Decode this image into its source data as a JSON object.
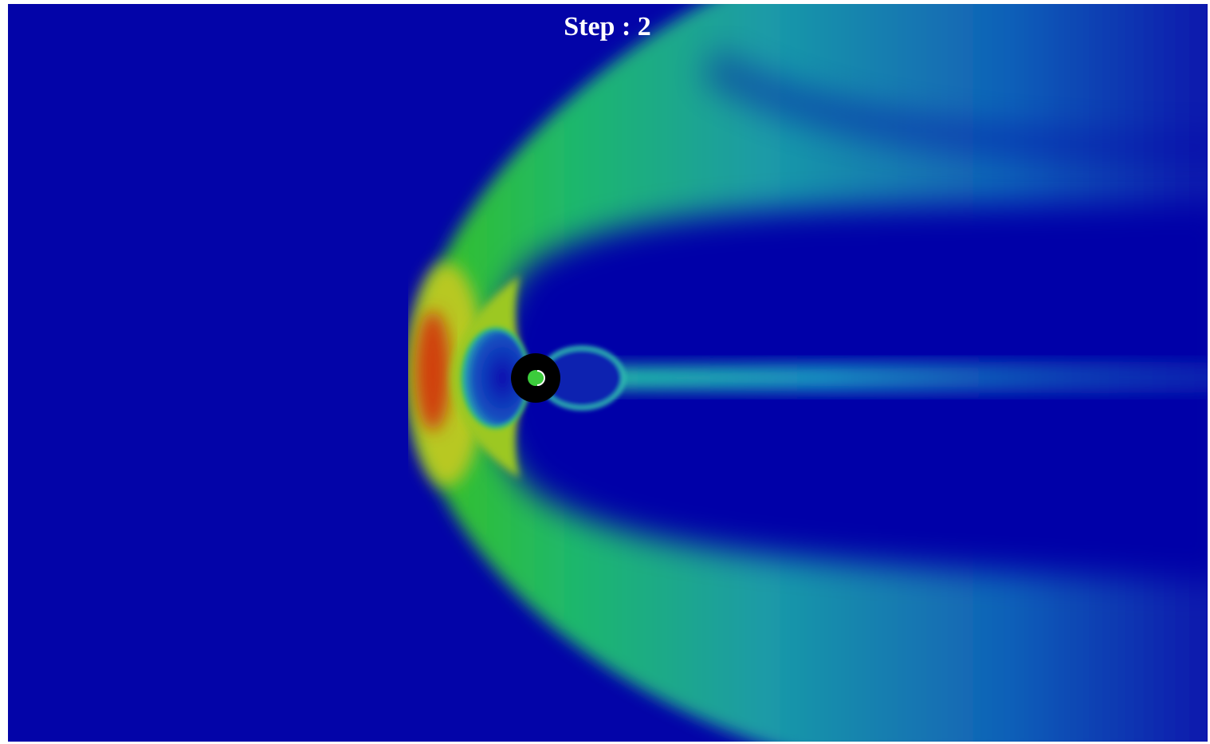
{
  "caption": "Step : 2"
}
